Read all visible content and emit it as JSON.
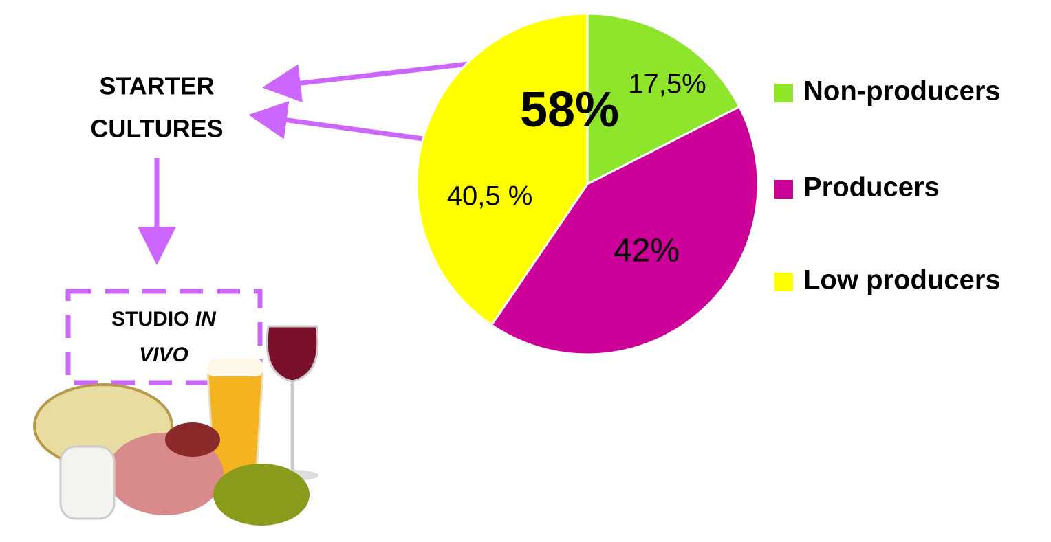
{
  "chart_data": {
    "type": "pie",
    "categories": [
      "Non-producers",
      "Producers",
      "Low producers"
    ],
    "values": [
      17.5,
      42,
      40.5
    ],
    "value_labels": [
      "17,5%",
      "42%",
      "40,5 %"
    ],
    "colors": [
      "#8fe52b",
      "#cc0099",
      "#ffff00"
    ],
    "legend": "right",
    "highlight_label": "58%",
    "annotations": {
      "starter": [
        "STARTER",
        "CULTURES"
      ],
      "studio": [
        "STUDIO",
        "IN",
        "VIVO"
      ]
    }
  }
}
